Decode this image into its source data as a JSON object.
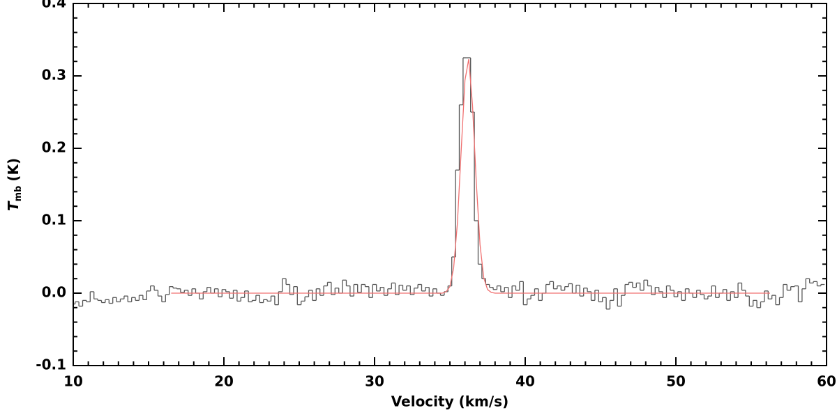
{
  "chart_data": {
    "type": "line",
    "x_label": "Velocity (km/s)",
    "y_label": {
      "main": "T",
      "sub": "mb",
      "unit": "(K)"
    },
    "x": [
      10,
      10.25,
      10.5,
      10.75,
      11,
      11.25,
      11.5,
      11.75,
      12,
      12.25,
      12.5,
      12.75,
      13,
      13.25,
      13.5,
      13.75,
      14,
      14.25,
      14.5,
      14.75,
      15,
      15.25,
      15.5,
      15.75,
      16,
      16.25,
      16.5,
      16.75,
      17,
      17.25,
      17.5,
      17.75,
      18,
      18.25,
      18.5,
      18.75,
      19,
      19.25,
      19.5,
      19.75,
      20,
      20.25,
      20.5,
      20.75,
      21,
      21.25,
      21.5,
      21.75,
      22,
      22.25,
      22.5,
      22.75,
      23,
      23.25,
      23.5,
      23.75,
      24,
      24.25,
      24.5,
      24.75,
      25,
      25.25,
      25.5,
      25.75,
      26,
      26.25,
      26.5,
      26.75,
      27,
      27.25,
      27.5,
      27.75,
      28,
      28.25,
      28.5,
      28.75,
      29,
      29.25,
      29.5,
      29.75,
      30,
      30.25,
      30.5,
      30.75,
      31,
      31.25,
      31.5,
      31.75,
      32,
      32.25,
      32.5,
      32.75,
      33,
      33.25,
      33.5,
      33.75,
      34,
      34.25,
      34.5,
      34.75,
      35,
      35.25,
      35.5,
      35.75,
      36,
      36.25,
      36.5,
      36.75,
      37,
      37.25,
      37.5,
      37.75,
      38,
      38.25,
      38.5,
      38.75,
      39,
      39.25,
      39.5,
      39.75,
      40,
      40.25,
      40.5,
      40.75,
      41,
      41.25,
      41.5,
      41.75,
      42,
      42.25,
      42.5,
      42.75,
      43,
      43.25,
      43.5,
      43.75,
      44,
      44.25,
      44.5,
      44.75,
      45,
      45.25,
      45.5,
      45.75,
      46,
      46.25,
      46.5,
      46.75,
      47,
      47.25,
      47.5,
      47.75,
      48,
      48.25,
      48.5,
      48.75,
      49,
      49.25,
      49.5,
      49.75,
      50,
      50.25,
      50.5,
      50.75,
      51,
      51.25,
      51.5,
      51.75,
      52,
      52.25,
      52.5,
      52.75,
      53,
      53.25,
      53.5,
      53.75,
      54,
      54.25,
      54.5,
      54.75,
      55,
      55.25,
      55.5,
      55.75,
      56,
      56.25,
      56.5,
      56.75,
      57,
      57.25,
      57.5,
      57.75,
      58,
      58.25,
      58.5,
      58.75,
      59,
      59.25,
      59.5,
      59.75
    ],
    "series": [
      {
        "color": "#555555",
        "drawstyle": "steps-mid",
        "values": [
          -0.015,
          -0.012,
          -0.018,
          -0.01,
          -0.012,
          0.002,
          -0.008,
          -0.01,
          -0.013,
          -0.009,
          -0.014,
          -0.006,
          -0.012,
          -0.008,
          -0.004,
          -0.012,
          -0.006,
          -0.01,
          -0.003,
          -0.009,
          0.003,
          0.01,
          0.004,
          -0.004,
          -0.012,
          -0.002,
          0.009,
          0.007,
          0.006,
          0.001,
          0.004,
          -0.003,
          0.006,
          0.0,
          -0.008,
          0.002,
          0.008,
          0.0,
          0.006,
          -0.005,
          0.005,
          0.002,
          -0.007,
          0.004,
          -0.011,
          -0.006,
          0.003,
          -0.012,
          -0.01,
          -0.003,
          -0.013,
          -0.009,
          -0.011,
          -0.004,
          -0.016,
          0.002,
          0.02,
          0.012,
          -0.002,
          0.009,
          -0.016,
          -0.011,
          -0.005,
          0.004,
          -0.01,
          0.006,
          -0.003,
          0.01,
          0.015,
          -0.002,
          0.007,
          0.0,
          0.018,
          0.01,
          -0.004,
          0.012,
          0.001,
          0.012,
          0.009,
          -0.006,
          0.012,
          0.003,
          0.008,
          -0.003,
          0.006,
          0.014,
          -0.002,
          0.011,
          0.004,
          0.01,
          -0.002,
          0.007,
          0.012,
          0.003,
          0.008,
          -0.004,
          0.006,
          0.0,
          -0.003,
          0.002,
          0.01,
          0.05,
          0.17,
          0.26,
          0.325,
          0.325,
          0.25,
          0.1,
          0.04,
          0.02,
          0.012,
          0.008,
          0.005,
          0.01,
          0.002,
          0.008,
          -0.006,
          0.01,
          0.004,
          0.016,
          -0.016,
          -0.008,
          -0.003,
          0.006,
          -0.01,
          0.0,
          0.012,
          0.016,
          0.006,
          0.01,
          0.004,
          0.009,
          0.013,
          0.0,
          0.011,
          -0.004,
          0.007,
          0.002,
          -0.01,
          0.004,
          -0.012,
          -0.006,
          -0.022,
          -0.01,
          0.006,
          -0.018,
          -0.003,
          0.012,
          0.015,
          0.008,
          0.014,
          0.004,
          0.018,
          0.01,
          -0.002,
          0.008,
          0.002,
          -0.006,
          0.01,
          0.004,
          -0.005,
          0.002,
          -0.01,
          0.006,
          0.0,
          -0.006,
          0.004,
          -0.002,
          -0.008,
          -0.004,
          0.01,
          -0.006,
          0.0,
          0.005,
          -0.01,
          0.002,
          -0.006,
          0.014,
          0.004,
          -0.004,
          -0.018,
          -0.01,
          -0.02,
          -0.012,
          0.003,
          -0.008,
          -0.003,
          -0.016,
          -0.006,
          0.012,
          0.004,
          0.009,
          0.01,
          -0.012,
          0.006,
          0.02,
          0.014,
          0.016,
          0.01,
          0.012
        ]
      },
      {
        "color": "#f07070",
        "drawstyle": "line",
        "values": [
          null,
          null,
          null,
          null,
          null,
          null,
          null,
          null,
          null,
          null,
          null,
          null,
          null,
          null,
          null,
          null,
          null,
          null,
          null,
          null,
          null,
          null,
          null,
          null,
          null,
          null,
          0,
          0,
          0,
          0,
          0,
          0,
          0,
          0,
          0,
          0,
          0,
          0,
          0,
          0,
          0,
          0,
          0,
          0,
          0,
          0,
          0,
          0,
          0,
          0,
          0,
          0,
          0,
          0,
          0,
          0,
          0,
          0,
          0,
          0,
          0,
          0,
          0,
          0,
          0,
          0,
          0,
          0,
          0,
          0,
          0,
          0,
          0,
          0,
          0,
          0,
          0,
          0,
          0,
          0,
          0,
          0,
          0,
          0,
          0,
          0,
          0,
          0,
          0,
          0,
          0,
          0,
          0,
          0,
          0,
          0,
          0,
          0,
          0,
          0.002,
          0.009,
          0.035,
          0.097,
          0.197,
          0.294,
          0.323,
          0.26,
          0.154,
          0.067,
          0.021,
          0.005,
          0.001,
          0,
          0,
          0,
          0,
          0,
          0,
          0,
          0,
          0,
          0,
          0,
          0,
          0,
          0,
          0,
          0,
          0,
          0,
          0,
          0,
          0,
          0,
          0,
          0,
          0,
          0,
          0,
          0,
          0,
          0,
          0,
          0,
          0,
          0,
          0,
          0,
          0,
          0,
          0,
          0,
          0,
          0,
          0,
          0,
          0,
          0,
          0,
          0,
          0,
          0,
          0,
          0,
          0,
          0,
          0,
          0,
          0,
          0,
          0,
          0,
          0,
          0,
          0,
          0,
          0,
          0,
          0,
          0,
          0,
          0,
          0,
          0,
          0,
          0,
          null,
          null,
          null,
          null,
          null,
          null,
          null,
          null,
          null,
          null,
          null,
          null,
          null,
          null
        ]
      }
    ],
    "xlim": [
      10,
      60
    ],
    "xticks": [
      10,
      20,
      30,
      40,
      50,
      60
    ],
    "ylim": [
      -0.1,
      0.4
    ],
    "yticks": [
      -0.1,
      {
        "value": 0,
        "label": "0.0"
      },
      0.1,
      0.2,
      0.3,
      0.4
    ],
    "grid": false
  }
}
